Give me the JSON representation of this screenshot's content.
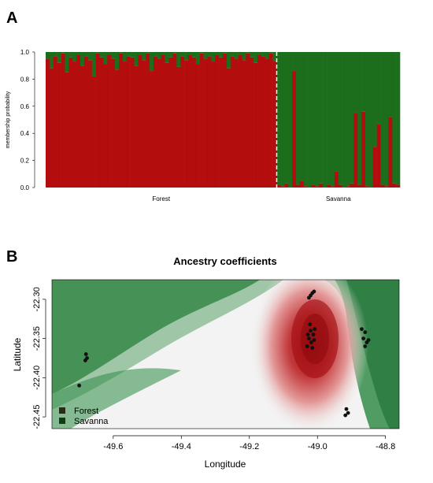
{
  "panels": {
    "a_letter": "A",
    "b_letter": "B"
  },
  "colors": {
    "red": "#b40d0d",
    "green": "#1c6e1c",
    "white": "#f4f4f4"
  },
  "chart_data": [
    {
      "type": "bar",
      "stacked": true,
      "ylabel": "membership probability",
      "ylim": [
        0,
        1
      ],
      "yticks": [
        "0.0",
        "0.2",
        "0.4",
        "0.6",
        "0.8",
        "1.0"
      ],
      "groups": [
        {
          "label": "Forest",
          "n": 60
        },
        {
          "label": "Savanna",
          "n": 32
        }
      ],
      "series": [
        {
          "name": "Forest",
          "values": [
            0.95,
            0.88,
            0.97,
            0.92,
            0.99,
            0.85,
            0.96,
            0.93,
            0.98,
            0.9,
            0.97,
            0.94,
            0.82,
            0.99,
            0.96,
            0.91,
            0.98,
            0.95,
            0.87,
            0.99,
            0.93,
            0.97,
            0.96,
            0.9,
            0.98,
            0.94,
            0.99,
            0.86,
            0.97,
            0.95,
            0.98,
            0.92,
            0.96,
            0.99,
            0.89,
            0.97,
            0.94,
            0.98,
            0.96,
            0.91,
            0.99,
            0.95,
            0.97,
            0.93,
            0.98,
            0.96,
            0.99,
            0.88,
            0.97,
            0.95,
            0.98,
            0.94,
            0.99,
            0.96,
            0.92,
            0.98,
            0.97,
            0.95,
            0.99,
            0.93,
            0.02,
            0.01,
            0.03,
            0.0,
            0.86,
            0.02,
            0.05,
            0.01,
            0.0,
            0.02,
            0.01,
            0.03,
            0.0,
            0.02,
            0.01,
            0.12,
            0.02,
            0.0,
            0.01,
            0.03,
            0.55,
            0.02,
            0.56,
            0.01,
            0.0,
            0.3,
            0.47,
            0.02,
            0.01,
            0.52,
            0.03,
            0.02
          ]
        },
        {
          "name": "Savanna",
          "complement_of": "Forest"
        }
      ]
    },
    {
      "type": "heatmap",
      "title": "Ancestry coefficients",
      "xlabel": "Longitude",
      "ylabel": "Latitude",
      "xlim": [
        -49.78,
        -48.76
      ],
      "ylim": [
        -22.465,
        -22.275
      ],
      "xticks": [
        "-49.6",
        "-49.4",
        "-49.2",
        "-49.0",
        "-48.8"
      ],
      "yticks": [
        "-22.30",
        "-22.35",
        "-22.40",
        "-22.45"
      ],
      "legend": [
        "Forest",
        "Savanna"
      ],
      "legend_position": "bottom-left",
      "points": [
        [
          -49.02,
          -22.295
        ],
        [
          -49.015,
          -22.292
        ],
        [
          -49.025,
          -22.298
        ],
        [
          -49.01,
          -22.29
        ],
        [
          -49.02,
          -22.34
        ],
        [
          -49.012,
          -22.345
        ],
        [
          -49.025,
          -22.35
        ],
        [
          -49.008,
          -22.338
        ],
        [
          -49.018,
          -22.355
        ],
        [
          -49.03,
          -22.36
        ],
        [
          -49.01,
          -22.352
        ],
        [
          -49.022,
          -22.332
        ],
        [
          -49.015,
          -22.362
        ],
        [
          -49.028,
          -22.345
        ],
        [
          -48.87,
          -22.338
        ],
        [
          -48.86,
          -22.342
        ],
        [
          -48.865,
          -22.35
        ],
        [
          -48.855,
          -22.355
        ],
        [
          -48.86,
          -22.36
        ],
        [
          -48.85,
          -22.352
        ],
        [
          -49.68,
          -22.37
        ],
        [
          -49.677,
          -22.375
        ],
        [
          -49.682,
          -22.378
        ],
        [
          -49.7,
          -22.41
        ],
        [
          -48.915,
          -22.44
        ],
        [
          -48.91,
          -22.445
        ],
        [
          -48.918,
          -22.448
        ]
      ]
    }
  ]
}
